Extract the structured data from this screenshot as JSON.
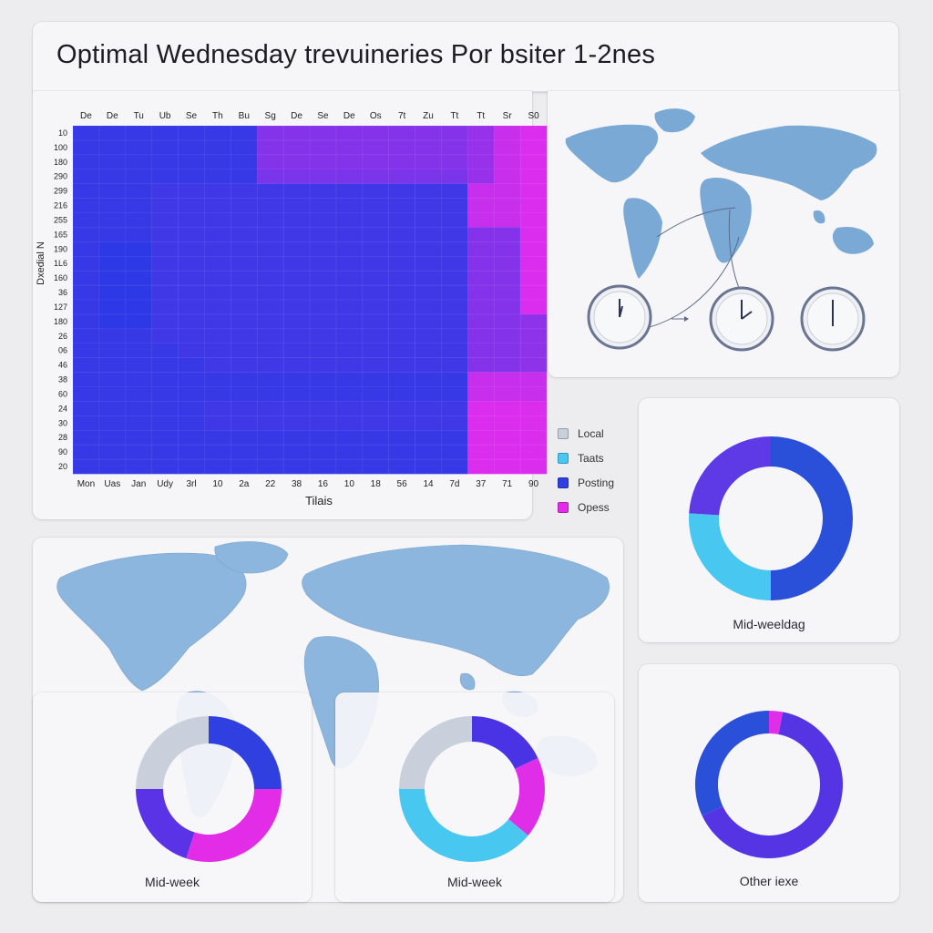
{
  "page_title": "Optimal Wednesday trevuineries Por bsiter 1-2nes",
  "chart_data": [
    {
      "type": "heatmap",
      "columns_top": [
        "De",
        "De",
        "Tu",
        "Ub",
        "Se",
        "Th",
        "Bu",
        "Sg",
        "De",
        "Se",
        "De",
        "Os",
        "7t",
        "Zu",
        "Tt",
        "Tt",
        "Sr",
        "S0"
      ],
      "columns_bottom": [
        "Mon",
        "Uas",
        "Jan",
        "Udy",
        "3rl",
        "10",
        "2a",
        "22",
        "38",
        "16",
        "10",
        "18",
        "56",
        "14",
        "7d",
        "37",
        "71",
        "90"
      ],
      "rows": [
        "10",
        "100",
        "180",
        "290",
        "299",
        "216",
        "255",
        "165",
        "190",
        "1L6",
        "160",
        "36",
        "127",
        "180",
        "26",
        "06",
        "46",
        "38",
        "60",
        "24",
        "30",
        "28",
        "90",
        "20"
      ],
      "xlabel": "Tilais",
      "ylabel": "Dxedial N",
      "colors": {
        "low": "#2d39e6",
        "high": "#ee2cee"
      },
      "values": [
        [
          0.05,
          0.05,
          0.05,
          0.05,
          0.05,
          0.05,
          0.05,
          0.45,
          0.45,
          0.45,
          0.45,
          0.45,
          0.45,
          0.45,
          0.45,
          0.55,
          0.8,
          0.9
        ],
        [
          0.05,
          0.05,
          0.05,
          0.05,
          0.05,
          0.05,
          0.05,
          0.45,
          0.45,
          0.45,
          0.45,
          0.45,
          0.45,
          0.45,
          0.45,
          0.55,
          0.8,
          0.9
        ],
        [
          0.05,
          0.05,
          0.05,
          0.05,
          0.05,
          0.05,
          0.05,
          0.45,
          0.45,
          0.45,
          0.45,
          0.45,
          0.45,
          0.45,
          0.45,
          0.55,
          0.8,
          0.9
        ],
        [
          0.05,
          0.05,
          0.05,
          0.05,
          0.05,
          0.05,
          0.05,
          0.4,
          0.4,
          0.4,
          0.4,
          0.4,
          0.4,
          0.4,
          0.4,
          0.55,
          0.8,
          0.9
        ],
        [
          0.05,
          0.05,
          0.05,
          0.1,
          0.1,
          0.1,
          0.1,
          0.1,
          0.1,
          0.1,
          0.1,
          0.1,
          0.1,
          0.1,
          0.1,
          0.8,
          0.8,
          0.9
        ],
        [
          0.05,
          0.05,
          0.05,
          0.1,
          0.1,
          0.1,
          0.1,
          0.1,
          0.1,
          0.1,
          0.1,
          0.1,
          0.1,
          0.1,
          0.1,
          0.8,
          0.8,
          0.9
        ],
        [
          0.05,
          0.05,
          0.05,
          0.1,
          0.1,
          0.1,
          0.1,
          0.1,
          0.1,
          0.1,
          0.1,
          0.1,
          0.1,
          0.1,
          0.1,
          0.8,
          0.8,
          0.9
        ],
        [
          0.05,
          0.05,
          0.05,
          0.1,
          0.1,
          0.1,
          0.1,
          0.1,
          0.1,
          0.1,
          0.1,
          0.1,
          0.1,
          0.1,
          0.1,
          0.45,
          0.45,
          0.9
        ],
        [
          0.05,
          0.0,
          0.0,
          0.1,
          0.1,
          0.1,
          0.1,
          0.1,
          0.1,
          0.1,
          0.1,
          0.1,
          0.1,
          0.1,
          0.1,
          0.45,
          0.45,
          0.9
        ],
        [
          0.05,
          0.0,
          0.0,
          0.1,
          0.1,
          0.1,
          0.1,
          0.1,
          0.1,
          0.1,
          0.1,
          0.1,
          0.1,
          0.1,
          0.1,
          0.45,
          0.45,
          0.9
        ],
        [
          0.05,
          0.0,
          0.0,
          0.1,
          0.1,
          0.1,
          0.1,
          0.1,
          0.1,
          0.1,
          0.1,
          0.1,
          0.1,
          0.1,
          0.1,
          0.45,
          0.45,
          0.9
        ],
        [
          0.05,
          0.0,
          0.0,
          0.1,
          0.1,
          0.1,
          0.1,
          0.1,
          0.1,
          0.1,
          0.1,
          0.1,
          0.1,
          0.1,
          0.1,
          0.45,
          0.45,
          0.9
        ],
        [
          0.05,
          0.0,
          0.0,
          0.1,
          0.1,
          0.1,
          0.1,
          0.1,
          0.1,
          0.1,
          0.1,
          0.1,
          0.1,
          0.1,
          0.1,
          0.45,
          0.45,
          0.9
        ],
        [
          0.05,
          0.0,
          0.0,
          0.1,
          0.1,
          0.1,
          0.1,
          0.1,
          0.1,
          0.1,
          0.1,
          0.1,
          0.1,
          0.1,
          0.1,
          0.45,
          0.45,
          0.5
        ],
        [
          0.05,
          0.05,
          0.05,
          0.1,
          0.1,
          0.1,
          0.1,
          0.1,
          0.1,
          0.1,
          0.1,
          0.1,
          0.1,
          0.1,
          0.1,
          0.45,
          0.45,
          0.5
        ],
        [
          0.05,
          0.05,
          0.05,
          0.05,
          0.1,
          0.1,
          0.1,
          0.1,
          0.1,
          0.1,
          0.1,
          0.1,
          0.1,
          0.1,
          0.1,
          0.45,
          0.45,
          0.5
        ],
        [
          0.05,
          0.05,
          0.05,
          0.05,
          0.05,
          0.1,
          0.1,
          0.1,
          0.1,
          0.1,
          0.1,
          0.1,
          0.1,
          0.1,
          0.1,
          0.45,
          0.45,
          0.5
        ],
        [
          0.05,
          0.05,
          0.05,
          0.05,
          0.05,
          0.05,
          0.05,
          0.05,
          0.05,
          0.05,
          0.05,
          0.05,
          0.05,
          0.05,
          0.05,
          0.8,
          0.8,
          0.8
        ],
        [
          0.05,
          0.05,
          0.05,
          0.05,
          0.05,
          0.05,
          0.05,
          0.05,
          0.05,
          0.05,
          0.05,
          0.05,
          0.05,
          0.05,
          0.05,
          0.8,
          0.8,
          0.8
        ],
        [
          0.05,
          0.05,
          0.05,
          0.05,
          0.05,
          0.1,
          0.1,
          0.1,
          0.1,
          0.1,
          0.1,
          0.1,
          0.1,
          0.1,
          0.1,
          0.9,
          0.9,
          0.9
        ],
        [
          0.05,
          0.05,
          0.05,
          0.05,
          0.05,
          0.1,
          0.1,
          0.1,
          0.1,
          0.1,
          0.1,
          0.1,
          0.1,
          0.1,
          0.1,
          0.9,
          0.9,
          0.9
        ],
        [
          0.05,
          0.05,
          0.05,
          0.05,
          0.05,
          0.05,
          0.05,
          0.05,
          0.05,
          0.05,
          0.05,
          0.05,
          0.05,
          0.05,
          0.05,
          0.9,
          0.9,
          0.9
        ],
        [
          0.05,
          0.05,
          0.05,
          0.05,
          0.05,
          0.05,
          0.05,
          0.05,
          0.05,
          0.05,
          0.05,
          0.05,
          0.05,
          0.05,
          0.05,
          0.9,
          0.9,
          0.9
        ],
        [
          0.05,
          0.05,
          0.05,
          0.05,
          0.05,
          0.05,
          0.05,
          0.05,
          0.05,
          0.05,
          0.05,
          0.05,
          0.05,
          0.05,
          0.05,
          0.9,
          0.9,
          0.9
        ]
      ]
    },
    {
      "type": "pie",
      "label": "Mid-week",
      "slices": [
        {
          "name": "Posting",
          "value": 25,
          "color": "#2f3fe0"
        },
        {
          "name": "Opess",
          "value": 30,
          "color": "#e22ce8"
        },
        {
          "name": "Posting",
          "value": 20,
          "color": "#5b33e6"
        },
        {
          "name": "Local",
          "value": 25,
          "color": "#c9d0dc"
        }
      ]
    },
    {
      "type": "pie",
      "label": "Mid-week",
      "slices": [
        {
          "name": "Posting",
          "value": 18,
          "color": "#4a33e4"
        },
        {
          "name": "Opess",
          "value": 18,
          "color": "#e02ee8"
        },
        {
          "name": "Taats",
          "value": 39,
          "color": "#48c8f0"
        },
        {
          "name": "Local",
          "value": 25,
          "color": "#c9d0dc"
        }
      ]
    },
    {
      "type": "pie",
      "label": "Mid-weeldag",
      "slices": [
        {
          "name": "Posting",
          "value": 50,
          "color": "#2a4fd8"
        },
        {
          "name": "Taats",
          "value": 26,
          "color": "#48c8f0"
        },
        {
          "name": "Posting",
          "value": 24,
          "color": "#5e3ae6"
        }
      ]
    },
    {
      "type": "pie",
      "label": "Other iexe",
      "slices": [
        {
          "name": "Opess",
          "value": 3,
          "color": "#e02ee8"
        },
        {
          "name": "Posting",
          "value": 65,
          "color": "#5534e4"
        },
        {
          "name": "Posting",
          "value": 32,
          "color": "#2a4fd8"
        }
      ]
    }
  ],
  "legend": [
    {
      "label": "Local",
      "color": "#c9d0dc"
    },
    {
      "label": "Taats",
      "color": "#48c8f0"
    },
    {
      "label": "Posting",
      "color": "#2f3fe0"
    },
    {
      "label": "Opess",
      "color": "#e22ce8"
    }
  ],
  "map_top": {
    "map_color": "#7aa9d6",
    "clock_icon": "clock-icon",
    "arrow_icon": "arrow-right-icon"
  },
  "map_bottom": {
    "map_color": "#8db6de"
  }
}
